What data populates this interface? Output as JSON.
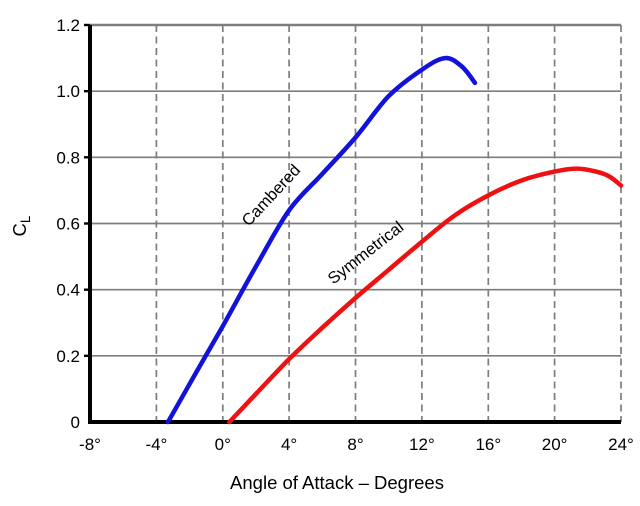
{
  "figure": {
    "background": "#ffffff"
  },
  "chart_data": {
    "type": "line",
    "title": "",
    "xlabel": "Angle of Attack – Degrees",
    "ylabel": "CL",
    "ylabel_main": "C",
    "ylabel_sub": "L",
    "xlim": [
      -8,
      24
    ],
    "ylim": [
      0,
      1.2
    ],
    "x_tick_values": [
      -8,
      -4,
      0,
      4,
      8,
      12,
      16,
      20,
      24
    ],
    "x_tick_labels": [
      "-8°",
      "-4°",
      "0°",
      "4°",
      "8°",
      "12°",
      "16°",
      "20°",
      "24°"
    ],
    "y_tick_values": [
      0,
      0.2,
      0.4,
      0.6,
      0.8,
      1.0,
      1.2
    ],
    "y_tick_labels": [
      "0",
      "0.2",
      "0.4",
      "0.6",
      "0.8",
      "1.0",
      "1.2"
    ],
    "grid": {
      "horizontal": "solid",
      "vertical": "dashed",
      "color": "#7d7d7d"
    },
    "axis_color": "#000000",
    "legend_position": "on-curve-labels",
    "series": [
      {
        "name": "Cambered",
        "color": "#1212d8",
        "points": [
          [
            -3.3,
            0
          ],
          [
            -1.6,
            0.15
          ],
          [
            0,
            0.29
          ],
          [
            2,
            0.47
          ],
          [
            4,
            0.64
          ],
          [
            6,
            0.75
          ],
          [
            8,
            0.86
          ],
          [
            10,
            0.985
          ],
          [
            12,
            1.065
          ],
          [
            13.4,
            1.1
          ],
          [
            14.4,
            1.075
          ],
          [
            15.2,
            1.025
          ]
        ]
      },
      {
        "name": "Symmetrical",
        "color": "#ee1111",
        "points": [
          [
            0.4,
            0
          ],
          [
            2,
            0.085
          ],
          [
            4,
            0.19
          ],
          [
            6,
            0.285
          ],
          [
            8,
            0.375
          ],
          [
            10,
            0.46
          ],
          [
            12,
            0.545
          ],
          [
            14,
            0.625
          ],
          [
            16,
            0.685
          ],
          [
            18,
            0.73
          ],
          [
            20,
            0.757
          ],
          [
            21.3,
            0.766
          ],
          [
            22.5,
            0.757
          ],
          [
            23.3,
            0.742
          ],
          [
            24,
            0.715
          ]
        ]
      }
    ]
  }
}
